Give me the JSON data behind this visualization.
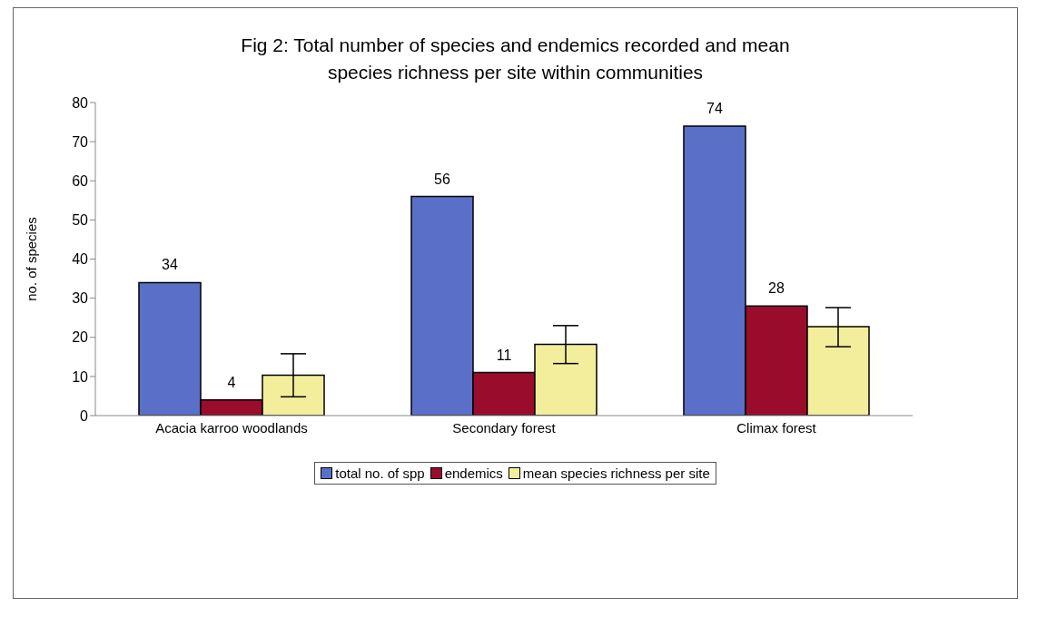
{
  "chart_data": {
    "type": "bar",
    "title": "Fig 2: Total number of species and endemics recorded and mean species richness per site within communities",
    "ylabel": "no. of species",
    "categories": [
      "Acacia karroo woodlands",
      "Secondary forest",
      "Climax forest"
    ],
    "series": [
      {
        "name": "total no. of spp",
        "color": "#5a6fc8",
        "values": [
          34,
          56,
          74
        ],
        "value_labels": [
          "34",
          "56",
          "74"
        ]
      },
      {
        "name": "endemics",
        "color": "#9a0c2c",
        "values": [
          4,
          11,
          28
        ],
        "value_labels": [
          "4",
          "11",
          "28"
        ]
      },
      {
        "name": "mean species richness per site",
        "color": "#f3ee9c",
        "values": [
          10.3,
          18.2,
          22.7
        ],
        "errors": [
          [
            4.8,
            15.8
          ],
          [
            13.3,
            23
          ],
          [
            17.6,
            27.6
          ]
        ]
      }
    ],
    "ylim": [
      0,
      80
    ],
    "yticks": [
      0,
      10,
      20,
      30,
      40,
      50,
      60,
      70,
      80
    ],
    "grid": false,
    "legend": "bottom"
  }
}
